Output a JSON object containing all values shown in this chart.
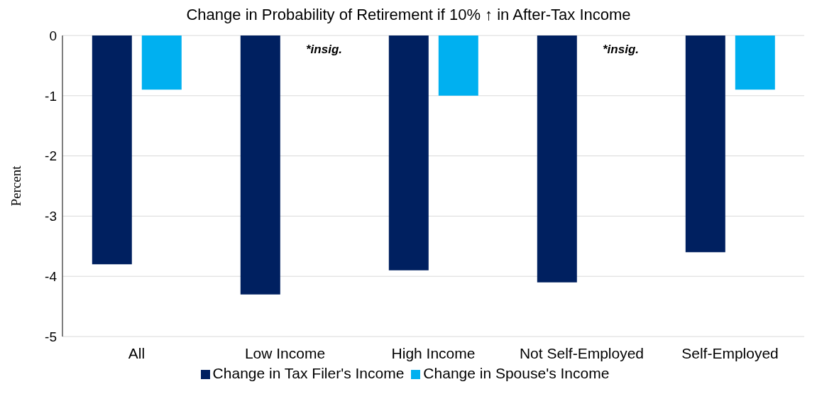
{
  "chart_data": {
    "type": "bar",
    "title": "Change in Probability of Retirement if 10% ↑ in After-Tax Income",
    "ylabel": "Percent",
    "categories": [
      "All",
      "Low Income",
      "High Income",
      "Not Self-Employed",
      "Self-Employed"
    ],
    "series": [
      {
        "name": "Change in Tax Filer's Income",
        "color": "#002060",
        "values": [
          -3.8,
          -4.3,
          -3.9,
          -4.1,
          -3.6
        ]
      },
      {
        "name": "Change in Spouse's Income",
        "color": "#00b0f0",
        "values": [
          -0.9,
          null,
          -1.0,
          null,
          -0.9
        ]
      }
    ],
    "annotations": [
      "*insig.",
      "*insig."
    ],
    "ylim": [
      -5,
      0
    ],
    "yticks": [
      0,
      -1,
      -2,
      -3,
      -4,
      -5
    ],
    "grid": "y",
    "legend": "bottom"
  }
}
